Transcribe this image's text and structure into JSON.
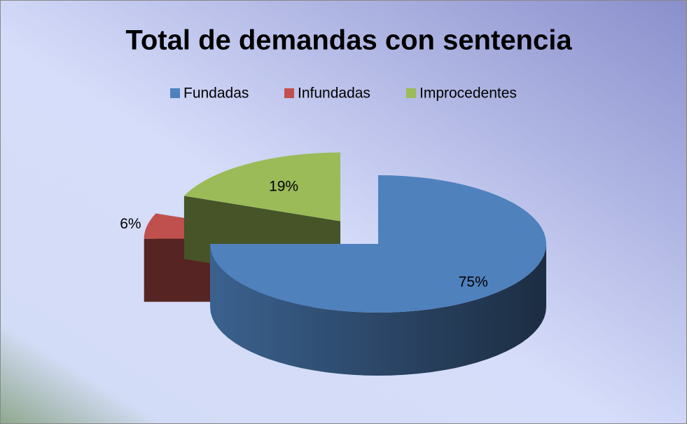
{
  "chart_data": {
    "type": "pie",
    "title": "Total de demandas con sentencia",
    "categories": [
      "Fundadas",
      "Infundadas",
      "Improcedentes"
    ],
    "values": [
      75,
      6,
      19
    ],
    "value_labels": [
      "75%",
      "6%",
      "19%"
    ],
    "colors": [
      "#4f81bd",
      "#c0504d",
      "#9bbb59"
    ],
    "legend": "top"
  }
}
